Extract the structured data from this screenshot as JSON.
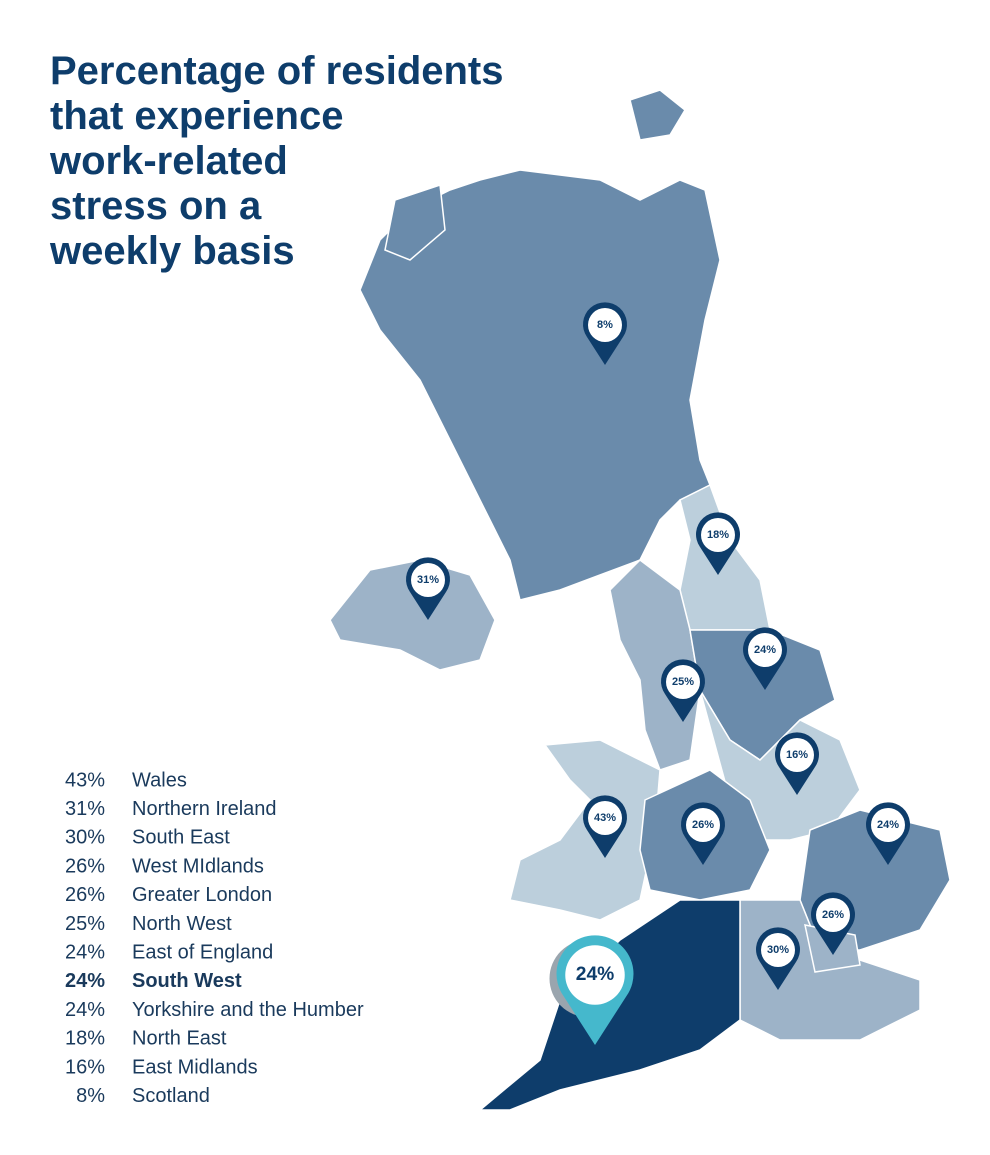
{
  "header": {
    "title": [
      "Percentage of residents",
      "that experience",
      "work-related",
      "stress on a",
      "weekly basis"
    ]
  },
  "regions": [
    {
      "name": "Wales",
      "value_label": "43%",
      "color": "#bccfdc"
    },
    {
      "name": "Northern Ireland",
      "value_label": "31%",
      "color": "#9db3c8"
    },
    {
      "name": "South East",
      "value_label": "30%",
      "color": "#9db3c8"
    },
    {
      "name": "West MIdlands",
      "value_label": "26%",
      "color": "#6a8bab"
    },
    {
      "name": "Greater London",
      "value_label": "26%",
      "color": "#9db3c8"
    },
    {
      "name": "North West",
      "value_label": "25%",
      "color": "#9db3c8"
    },
    {
      "name": "East of England",
      "value_label": "24%",
      "color": "#6a8bab"
    },
    {
      "name": "South West",
      "value_label": "24%",
      "color": "#0e3d6b",
      "highlighted": true
    },
    {
      "name": "Yorkshire and the Humber",
      "value_label": "24%",
      "color": "#6a8bab"
    },
    {
      "name": "North East",
      "value_label": "18%",
      "color": "#bccfdc"
    },
    {
      "name": "East Midlands",
      "value_label": "16%",
      "color": "#bccfdc"
    },
    {
      "name": "Scotland",
      "value_label": "8%",
      "color": "#6a8bab"
    }
  ]
}
